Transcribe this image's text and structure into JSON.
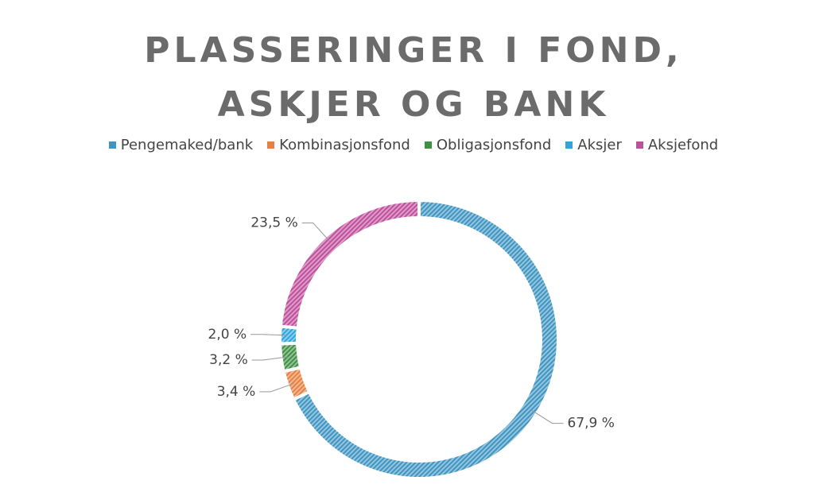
{
  "chart_data": {
    "type": "donut",
    "title": "PLASSERINGER I FOND, ASKJER OG BANK",
    "categories": [
      "Pengemaked/bank",
      "Kombinasjonsfond",
      "Obligasjonsfond",
      "Aksjer",
      "Aksjefond"
    ],
    "values": [
      67.9,
      3.4,
      3.2,
      2.0,
      23.5
    ],
    "value_labels": [
      "67,9 %",
      "3,4 %",
      "3,2 %",
      "2,0 %",
      "23,5 %"
    ],
    "colors": [
      "#3f95c2",
      "#e8803f",
      "#3f8f45",
      "#2ea6dc",
      "#c04f9c"
    ],
    "legend": "top"
  }
}
